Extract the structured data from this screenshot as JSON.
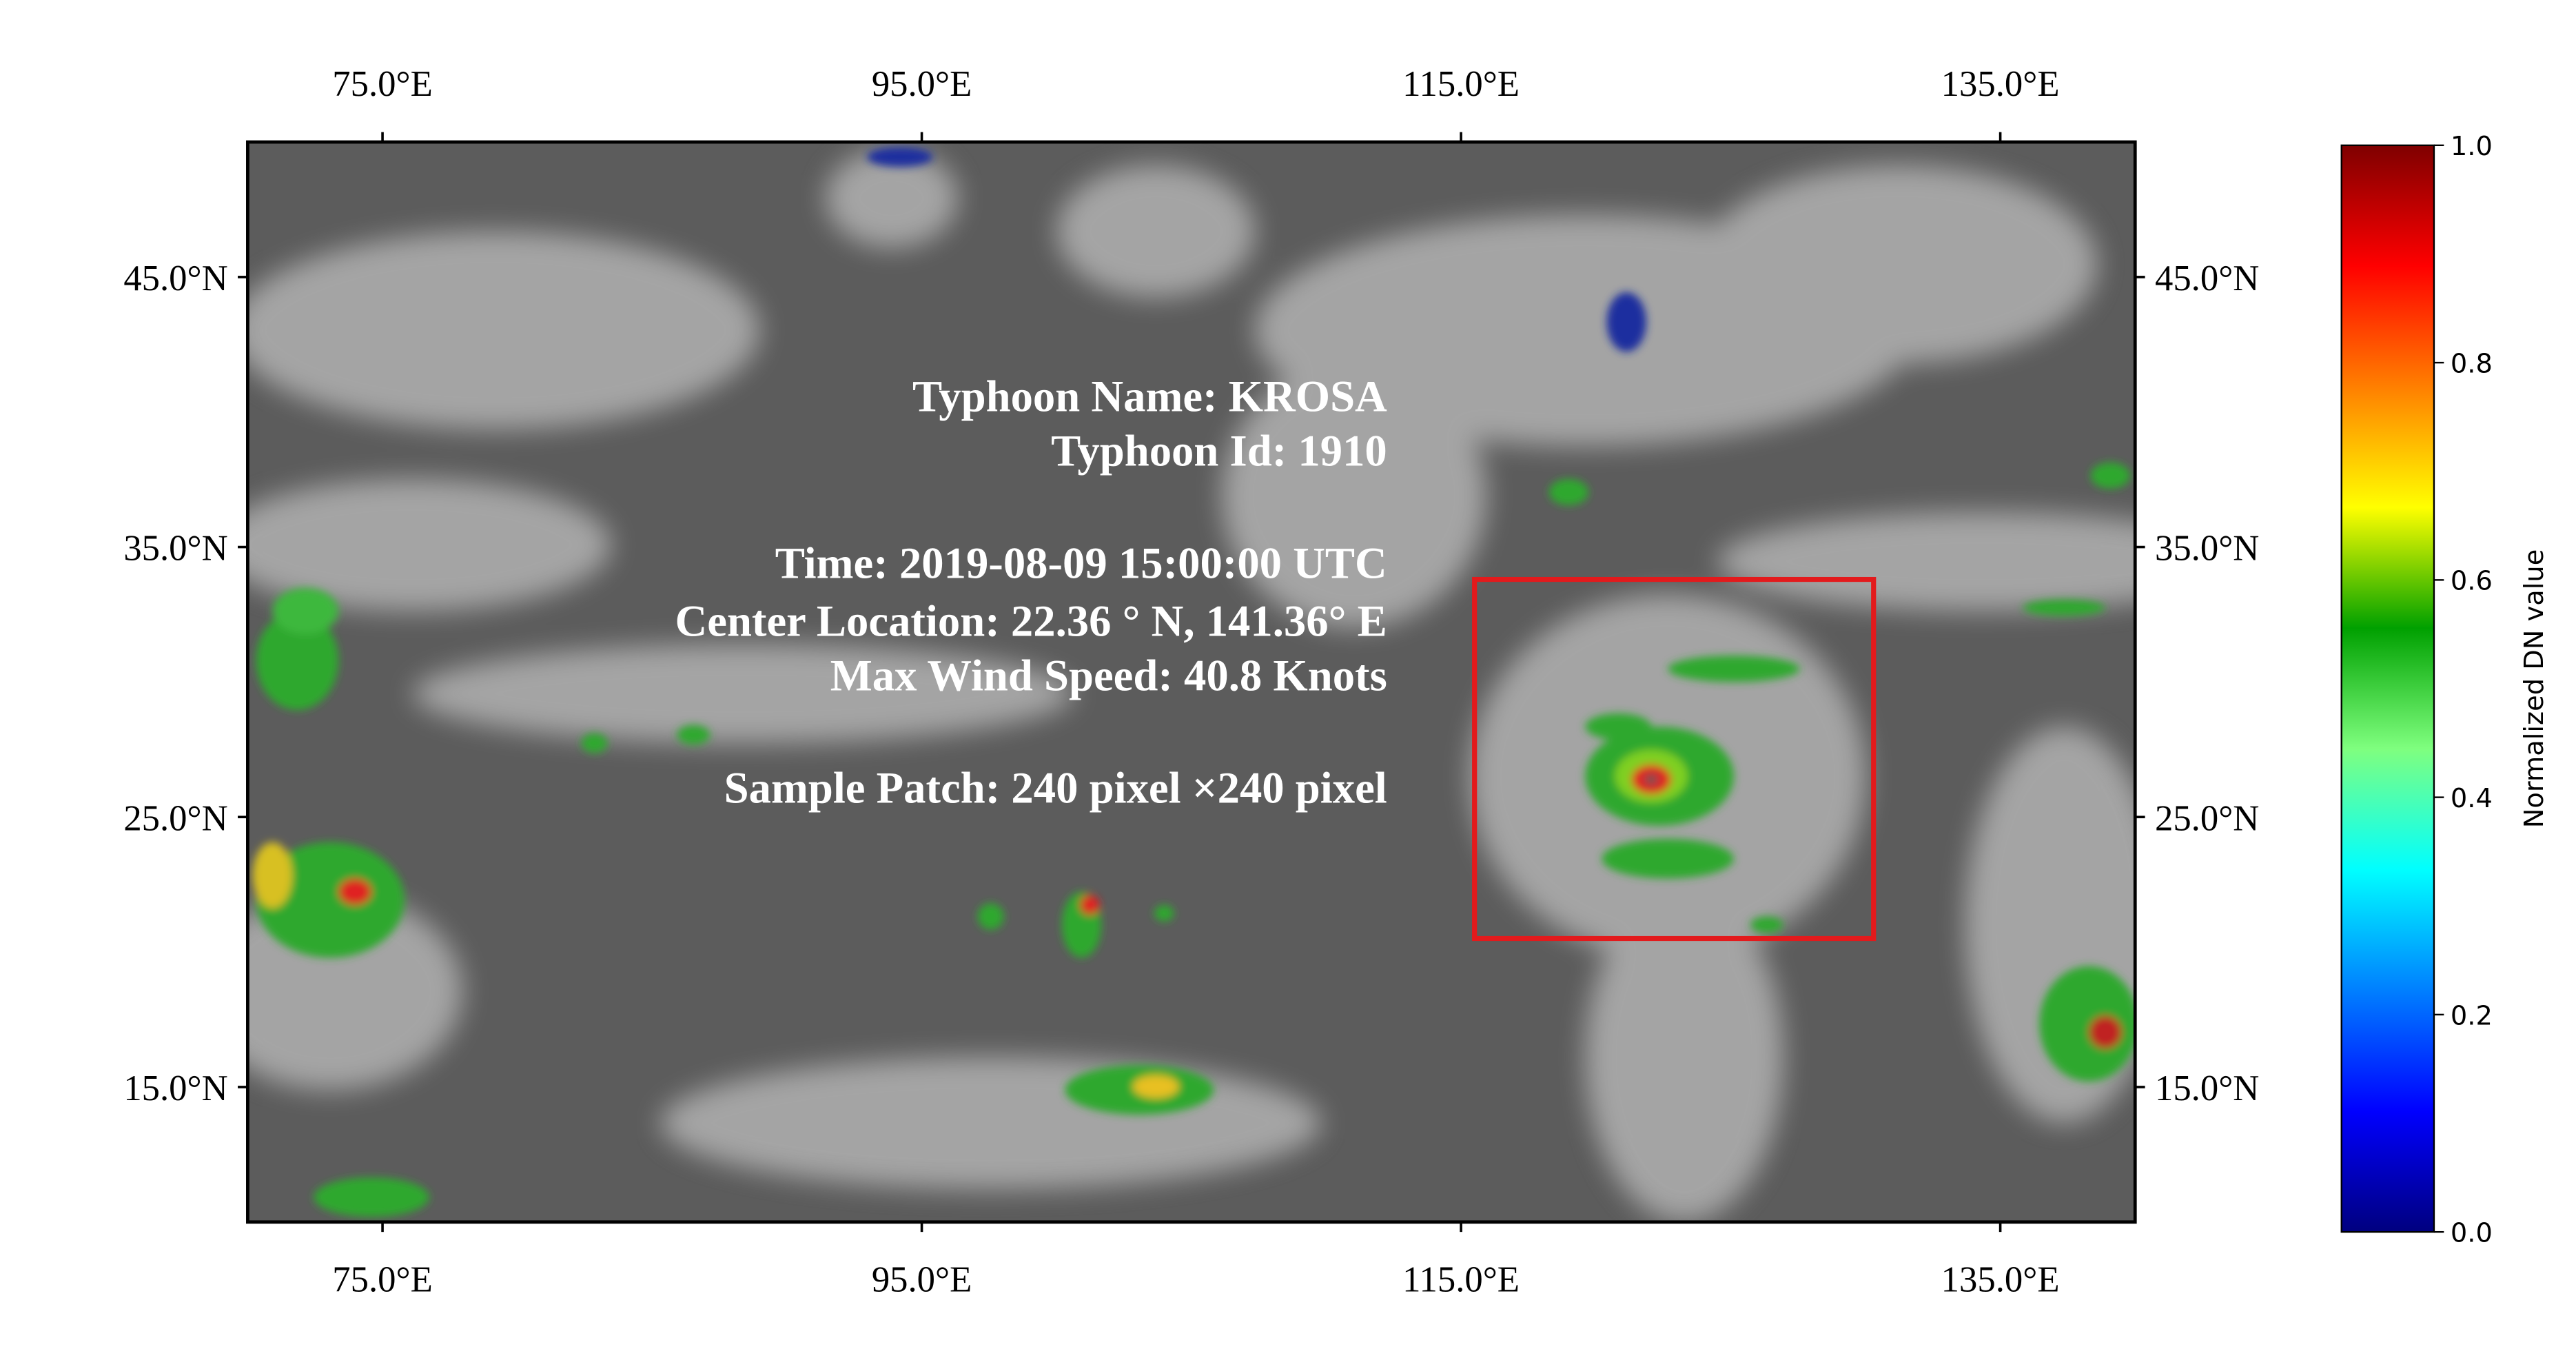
{
  "map": {
    "xlim": [
      70,
      140
    ],
    "ylim": [
      10,
      50
    ],
    "xticks": [
      {
        "value": 75,
        "label": "75.0°E"
      },
      {
        "value": 95,
        "label": "95.0°E"
      },
      {
        "value": 115,
        "label": "115.0°E"
      },
      {
        "value": 135,
        "label": "135.0°E"
      }
    ],
    "yticks": [
      {
        "value": 15,
        "label": "15.0°N"
      },
      {
        "value": 25,
        "label": "25.0°N"
      },
      {
        "value": 35,
        "label": "35.0°N"
      },
      {
        "value": 45,
        "label": "45.0°N"
      }
    ],
    "annotations": [
      "Typhoon Name: KROSA",
      "Typhoon Id: 1910",
      "Time: 2019-08-09 15:00:00 UTC",
      "Center Location: 22.36 ° N, 141.36° E",
      "Max Wind Speed: 40.8 Knots",
      "Sample Patch: 240 pixel ×240 pixel"
    ],
    "box": {
      "lon": [
        115.5,
        130.3
      ],
      "lat": [
        20.5,
        33.8
      ],
      "color": "#e31a1c"
    }
  },
  "colorbar": {
    "label": "Normalized DN value",
    "lim": [
      0,
      1
    ],
    "ticks": [
      {
        "value": 0,
        "label": "0.0"
      },
      {
        "value": 0.2,
        "label": "0.2"
      },
      {
        "value": 0.4,
        "label": "0.4"
      },
      {
        "value": 0.6,
        "label": "0.6"
      },
      {
        "value": 0.8,
        "label": "0.8"
      },
      {
        "value": 1,
        "label": "1.0"
      }
    ],
    "colors": [
      "#00007f",
      "#0000ff",
      "#007fff",
      "#00ffff",
      "#7fff7f",
      "#00a000",
      "#ffff00",
      "#ff7f00",
      "#ff0000",
      "#7f0000"
    ]
  }
}
